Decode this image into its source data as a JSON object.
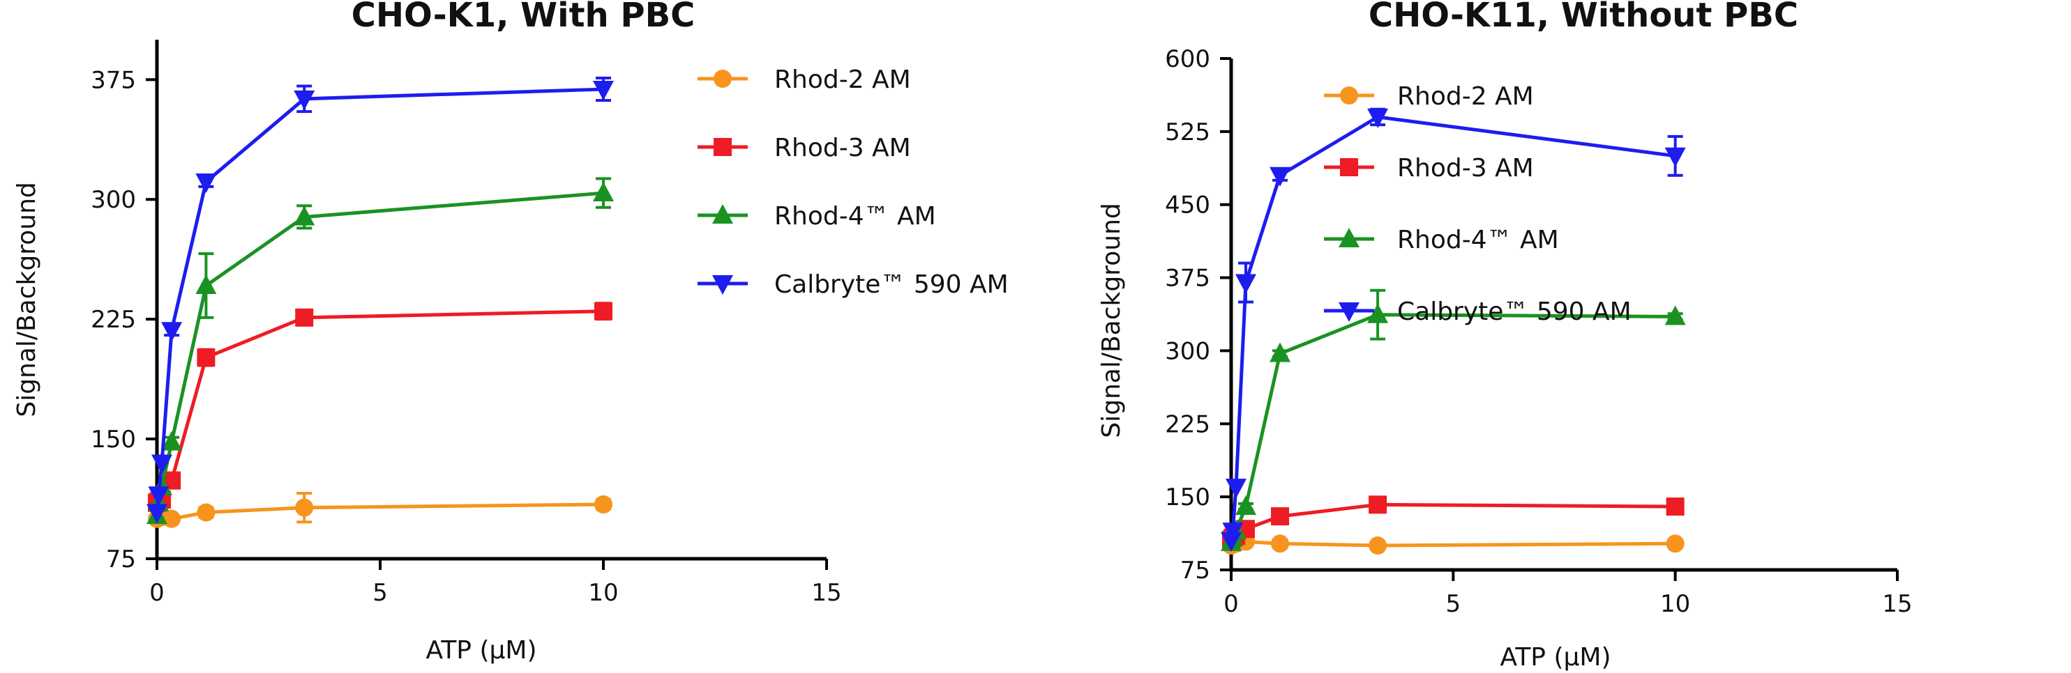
{
  "chart_data": [
    {
      "type": "line",
      "title": "CHO-K1, With PBC",
      "xlabel": "ATP (µM)",
      "ylabel": "Signal/Background",
      "xlim": [
        0,
        15
      ],
      "ylim": [
        75,
        400
      ],
      "xticks": [
        0,
        5,
        10,
        15
      ],
      "yticks": [
        75,
        150,
        225,
        300,
        375
      ],
      "x": [
        0,
        0.037,
        0.11,
        0.33,
        1.1,
        3.3,
        10
      ],
      "legend_position": "right",
      "series": [
        {
          "name": "Rhod-2 AM",
          "color": "#F7941D",
          "marker": "circle",
          "values": [
            100,
            101,
            101,
            100,
            104,
            107,
            109
          ],
          "errors": [
            0,
            0,
            0,
            0,
            3,
            9,
            3
          ]
        },
        {
          "name": "Rhod-3 AM",
          "color": "#EE1C24",
          "marker": "square",
          "values": [
            110,
            111,
            112,
            124,
            201,
            226,
            230
          ],
          "errors": [
            0,
            0,
            0,
            3,
            5,
            4,
            5
          ]
        },
        {
          "name": "Rhod-4™ AM",
          "color": "#1A9222",
          "marker": "triangle-up",
          "values": [
            102,
            110,
            120,
            148,
            246,
            289,
            304
          ],
          "errors": [
            0,
            0,
            0,
            3,
            20,
            7,
            9
          ]
        },
        {
          "name": "Calbryte™ 590 AM",
          "color": "#1D1DEF",
          "marker": "triangle-down",
          "values": [
            104,
            115,
            135,
            218,
            311,
            363,
            369
          ],
          "errors": [
            0,
            0,
            0,
            3,
            3,
            8,
            7
          ]
        }
      ]
    },
    {
      "type": "line",
      "title": "CHO-K11, Without PBC",
      "xlabel": "ATP (µM)",
      "ylabel": "Signal/Background",
      "xlim": [
        0,
        15
      ],
      "ylim": [
        75,
        600
      ],
      "xticks": [
        0,
        5,
        10,
        15
      ],
      "yticks": [
        75,
        150,
        225,
        300,
        375,
        450,
        525,
        600
      ],
      "x": [
        0,
        0.037,
        0.11,
        0.33,
        1.1,
        3.3,
        10
      ],
      "legend_position": "right",
      "series": [
        {
          "name": "Rhod-2 AM",
          "color": "#F7941D",
          "marker": "circle",
          "values": [
            100,
            101,
            102,
            104,
            102,
            100,
            102
          ],
          "errors": [
            0,
            0,
            0,
            0,
            2,
            2,
            3
          ]
        },
        {
          "name": "Rhod-3 AM",
          "color": "#EE1C24",
          "marker": "square",
          "values": [
            106,
            108,
            110,
            117,
            130,
            142,
            140
          ],
          "errors": [
            0,
            0,
            0,
            4,
            3,
            3,
            4
          ]
        },
        {
          "name": "Rhod-4™ AM",
          "color": "#1A9222",
          "marker": "triangle-up",
          "values": [
            103,
            108,
            115,
            140,
            297,
            337,
            335
          ],
          "errors": [
            0,
            0,
            0,
            3,
            3,
            25,
            3
          ]
        },
        {
          "name": "Calbryte™ 590 AM",
          "color": "#1D1DEF",
          "marker": "triangle-down",
          "values": [
            105,
            115,
            160,
            370,
            480,
            540,
            500
          ],
          "errors": [
            0,
            0,
            0,
            20,
            5,
            8,
            20
          ]
        }
      ]
    }
  ]
}
